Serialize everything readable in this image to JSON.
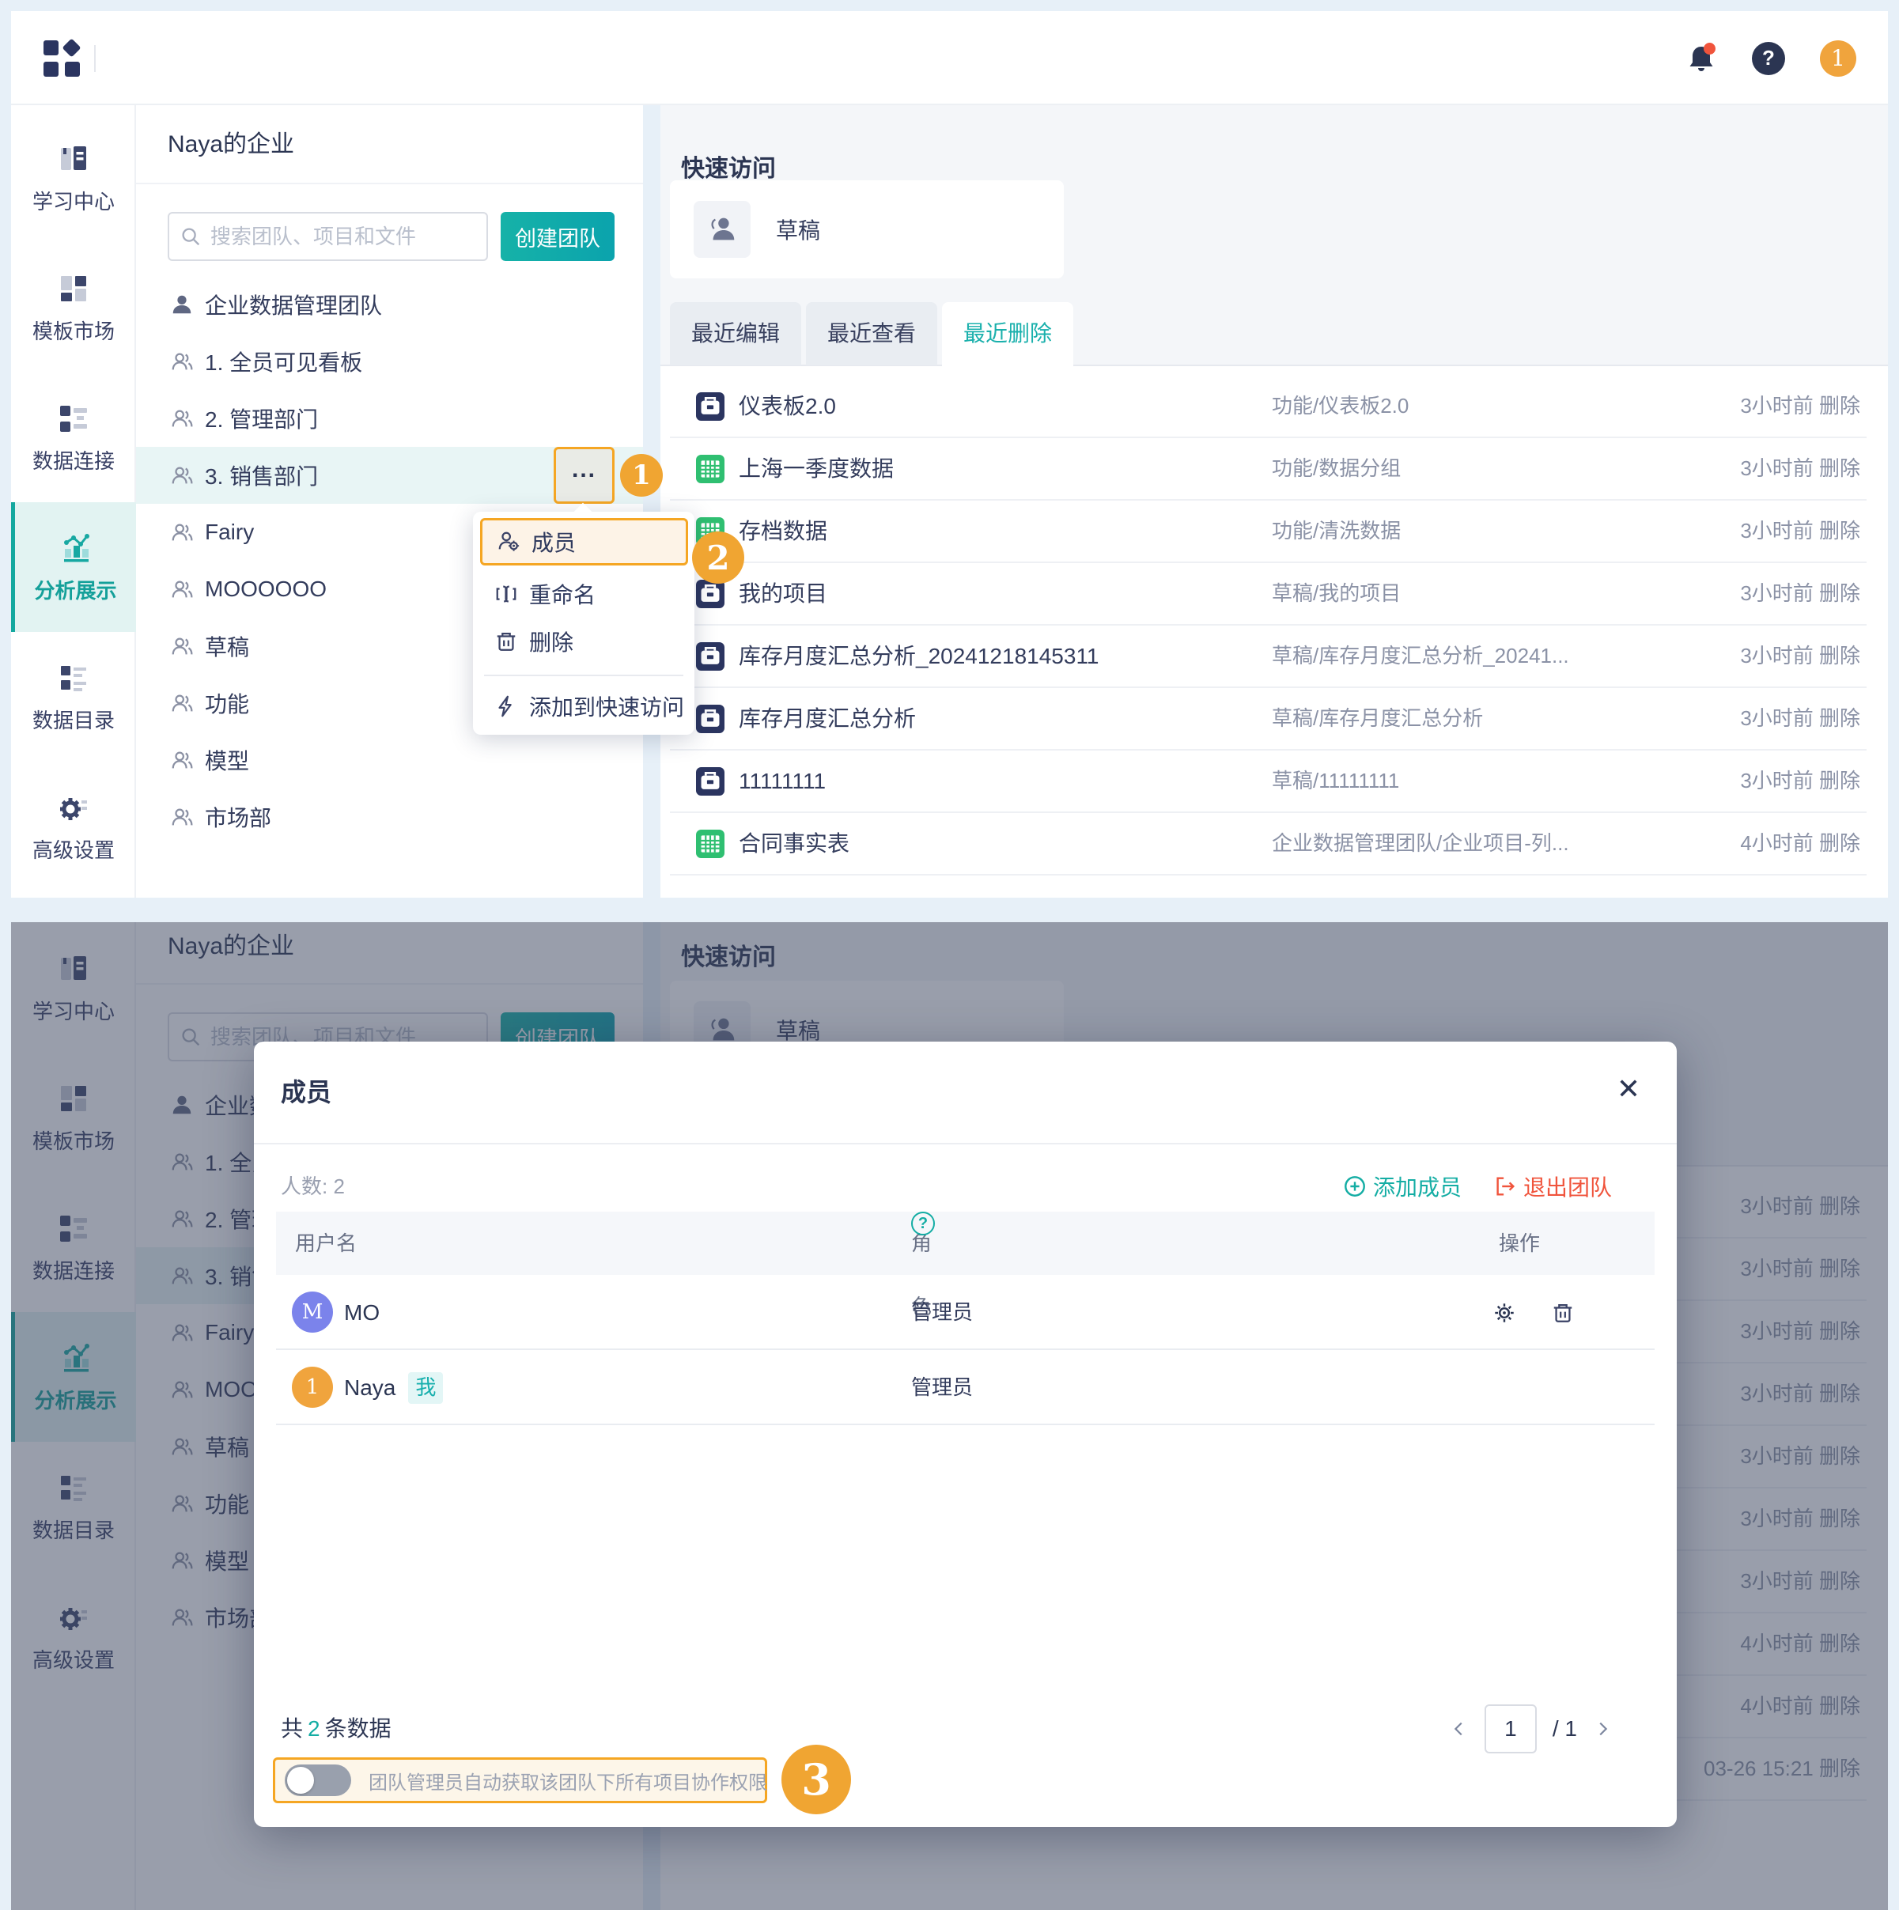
{
  "colors": {
    "teal": "#14ada4",
    "orange": "#f5a623",
    "red": "#f0543c",
    "navy": "#2b3552",
    "green": "#2fbf71",
    "purple": "#7b83eb",
    "avatar_orange": "#f0a43d"
  },
  "header": {
    "logo_icon": "app-logo",
    "bell_icon": "notification-bell",
    "help_icon": "help-question",
    "avatar_label": "1"
  },
  "sidebar": {
    "items": [
      {
        "label": "学习中心",
        "icon": "learning-center",
        "active": false
      },
      {
        "label": "模板市场",
        "icon": "template-market",
        "active": false
      },
      {
        "label": "数据连接",
        "icon": "data-connection",
        "active": false
      },
      {
        "label": "分析展示",
        "icon": "analysis-display",
        "active": true
      },
      {
        "label": "数据目录",
        "icon": "data-catalog",
        "active": false
      },
      {
        "label": "高级设置",
        "icon": "advanced-settings",
        "active": false
      }
    ]
  },
  "team_panel": {
    "title": "Naya的企业",
    "search_placeholder": "搜索团队、项目和文件",
    "create_button": "创建团队",
    "more_button": "...",
    "teams": [
      {
        "name": "企业数据管理团队",
        "icon": "person-solid",
        "selected": false
      },
      {
        "name": "1. 全员可见看板",
        "icon": "person-duo",
        "selected": false
      },
      {
        "name": "2. 管理部门",
        "icon": "person-duo",
        "selected": false
      },
      {
        "name": "3. 销售部门",
        "icon": "person-duo",
        "selected": true
      },
      {
        "name": "Fairy",
        "icon": "person-duo",
        "selected": false
      },
      {
        "name": "MOOOOOO",
        "icon": "person-duo",
        "selected": false
      },
      {
        "name": "草稿",
        "icon": "person-duo",
        "selected": false
      },
      {
        "name": "功能",
        "icon": "person-duo",
        "selected": false
      },
      {
        "name": "模型",
        "icon": "person-duo",
        "selected": false
      },
      {
        "name": "市场部",
        "icon": "person-duo",
        "selected": false
      }
    ]
  },
  "context_menu": {
    "items": [
      {
        "label": "成员",
        "icon": "member-gear-icon",
        "highlighted": true,
        "divider_before": false
      },
      {
        "label": "重命名",
        "icon": "rename-icon",
        "highlighted": false,
        "divider_before": false
      },
      {
        "label": "删除",
        "icon": "trash-icon",
        "highlighted": false,
        "divider_before": false
      },
      {
        "label": "添加到快速访问",
        "icon": "lightning-icon",
        "highlighted": false,
        "divider_before": true
      }
    ]
  },
  "quick_access": {
    "title": "快速访问",
    "card_label": "草稿",
    "tabs": [
      {
        "label": "最近编辑",
        "active": false
      },
      {
        "label": "最近查看",
        "active": false
      },
      {
        "label": "最近删除",
        "active": true
      }
    ],
    "rows": [
      {
        "name": "仪表板2.0",
        "icon": "project",
        "path": "功能/仪表板2.0",
        "time": "3小时前 删除"
      },
      {
        "name": "上海一季度数据",
        "icon": "table",
        "path": "功能/数据分组",
        "time": "3小时前 删除"
      },
      {
        "name": "存档数据",
        "icon": "table",
        "path": "功能/清洗数据",
        "time": "3小时前 删除"
      },
      {
        "name": "我的项目",
        "icon": "project",
        "path": "草稿/我的项目",
        "time": "3小时前 删除"
      },
      {
        "name": "库存月度汇总分析_20241218145311",
        "icon": "project",
        "path": "草稿/库存月度汇总分析_20241...",
        "time": "3小时前 删除"
      },
      {
        "name": "库存月度汇总分析",
        "icon": "project",
        "path": "草稿/库存月度汇总分析",
        "time": "3小时前 删除"
      },
      {
        "name": "11111111",
        "icon": "project",
        "path": "草稿/11111111",
        "time": "3小时前 删除"
      },
      {
        "name": "合同事实表",
        "icon": "table",
        "path": "企业数据管理团队/企业项目-列...",
        "time": "4小时前 删除"
      }
    ],
    "extra_rows": [
      {
        "time": "4小时前 删除"
      },
      {
        "time": "03-26 15:21 删除"
      }
    ]
  },
  "annotations": {
    "step1": "1",
    "step2": "2",
    "step3": "3"
  },
  "modal": {
    "title": "成员",
    "count_label": "人数: 2",
    "add_member": "添加成员",
    "quit_team": "退出团队",
    "columns": {
      "username": "用户名",
      "role": "角色",
      "action": "操作"
    },
    "members": [
      {
        "avatar_text": "M",
        "avatar_color": "#7b83eb",
        "name": "MO",
        "role": "管理员",
        "is_me": false,
        "me_badge": "",
        "has_actions": true
      },
      {
        "avatar_text": "1",
        "avatar_color": "#f0a43d",
        "name": "Naya",
        "role": "管理员",
        "is_me": true,
        "me_badge": "我",
        "has_actions": false
      }
    ],
    "total_prefix": "共",
    "total_count": "2",
    "total_suffix": "条数据",
    "toggle_label": "团队管理员自动获取该团队下所有项目协作权限",
    "toggle_on": false,
    "pagination": {
      "page": "1",
      "total": "/ 1"
    }
  }
}
